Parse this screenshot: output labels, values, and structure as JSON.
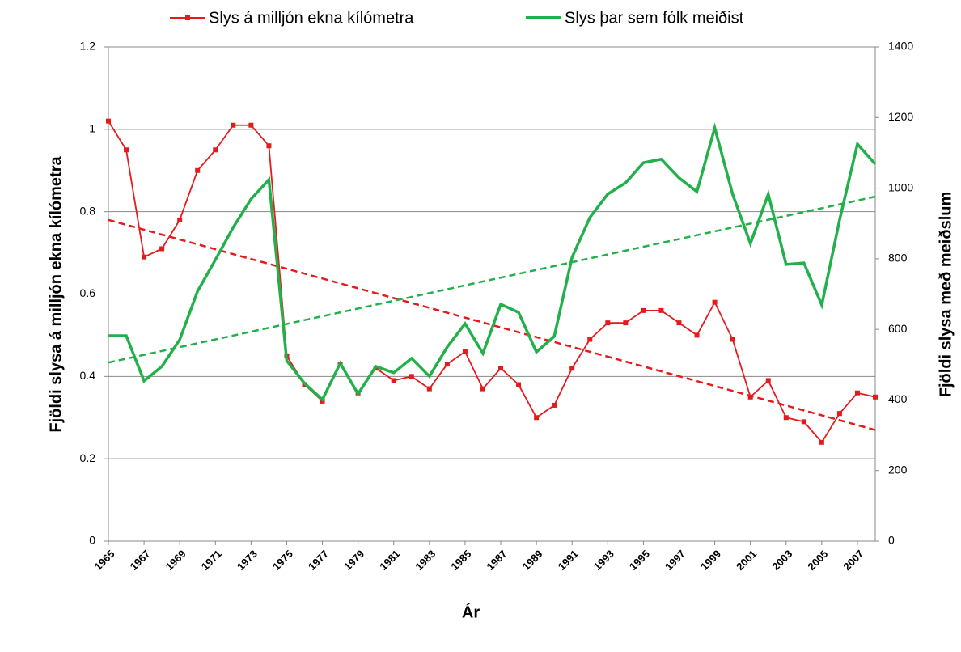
{
  "chart_data": {
    "type": "line",
    "x_label": "Ár",
    "y_label": "Fjöldi slysa á milljón ekna kílómetra",
    "y2_label": "Fjöldi slysa með meiðslum",
    "x": [
      1965,
      1966,
      1967,
      1968,
      1969,
      1970,
      1971,
      1972,
      1973,
      1974,
      1975,
      1976,
      1977,
      1978,
      1979,
      1980,
      1981,
      1982,
      1983,
      1984,
      1985,
      1986,
      1987,
      1988,
      1989,
      1990,
      1991,
      1992,
      1993,
      1994,
      1995,
      1996,
      1997,
      1998,
      1999,
      2000,
      2001,
      2002,
      2003,
      2004,
      2005,
      2006,
      2007,
      2008
    ],
    "xlim": [
      1965,
      2008
    ],
    "xticks": [
      1965,
      1967,
      1969,
      1971,
      1973,
      1975,
      1977,
      1979,
      1981,
      1983,
      1985,
      1987,
      1989,
      1991,
      1993,
      1995,
      1997,
      1999,
      2001,
      2003,
      2005,
      2007
    ],
    "ylim": [
      0,
      1.2
    ],
    "yticks": [
      0,
      0.2,
      0.4,
      0.6,
      0.8,
      1,
      1.2
    ],
    "y2lim": [
      0,
      1400
    ],
    "y2ticks": [
      0,
      200,
      400,
      600,
      800,
      1000,
      1200,
      1400
    ],
    "grid": true,
    "series": [
      {
        "name": "Slys á milljón ekna kílómetra",
        "color": "#e41a1c",
        "axis": "y",
        "marker": "square",
        "values": [
          1.02,
          0.95,
          0.69,
          0.71,
          0.78,
          0.9,
          0.95,
          1.01,
          1.01,
          0.96,
          0.45,
          0.38,
          0.34,
          0.43,
          0.36,
          0.42,
          0.39,
          0.4,
          0.37,
          0.43,
          0.46,
          0.37,
          0.42,
          0.38,
          0.3,
          0.33,
          0.42,
          0.49,
          0.53,
          0.53,
          0.56,
          0.56,
          0.53,
          0.5,
          0.58,
          0.49,
          0.35,
          0.39,
          0.3,
          0.29,
          0.24,
          0.31,
          0.36,
          0.35
        ],
        "trendline": {
          "x": [
            1965,
            2008
          ],
          "values": [
            0.78,
            0.27
          ]
        }
      },
      {
        "name": "Slys þar sem fólk meiðist",
        "color": "#22b04b",
        "axis": "y2",
        "values": [
          582,
          582,
          454,
          495,
          571,
          708,
          797,
          889,
          969,
          1024,
          511,
          447,
          401,
          504,
          417,
          495,
          477,
          518,
          467,
          550,
          616,
          532,
          671,
          648,
          536,
          580,
          804,
          917,
          983,
          1015,
          1072,
          1082,
          1029,
          990,
          1171,
          983,
          843,
          983,
          784,
          788,
          669,
          910,
          1125,
          1068
        ],
        "trendline": {
          "x": [
            1965,
            2008
          ],
          "values": [
            506,
            976
          ]
        }
      }
    ]
  }
}
